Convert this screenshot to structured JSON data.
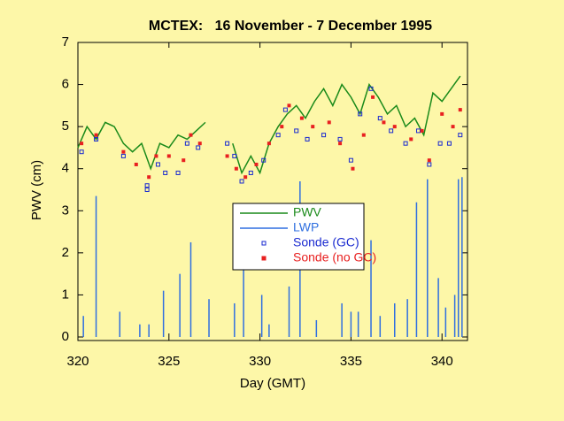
{
  "chart_data": {
    "type": "line",
    "title": "MCTEX:   16 November - 7 December 1995",
    "x_label": "Day (GMT)",
    "y_label": "PWV (cm)",
    "xlim": [
      320,
      341.4
    ],
    "ylim": [
      0,
      7
    ],
    "xticks": [
      320,
      325,
      330,
      335,
      340
    ],
    "yticks": [
      0,
      1,
      2,
      3,
      4,
      5,
      6,
      7
    ],
    "series": [
      {
        "name": "PWV",
        "color": "#1a8a1a",
        "style": "line",
        "x": [
          320,
          320.5,
          321,
          321.5,
          322,
          322.5,
          323,
          323.5,
          324,
          324.5,
          325,
          325.5,
          326,
          326.5,
          327,
          327.5,
          328,
          328.5,
          329,
          329.5,
          330,
          330.5,
          331,
          331.5,
          332,
          332.5,
          333,
          333.5,
          334,
          334.5,
          335,
          335.5,
          336,
          336.5,
          337,
          337.5,
          338,
          338.5,
          339,
          339.5,
          340,
          340.5,
          341
        ],
        "values": [
          4.5,
          5.0,
          4.7,
          5.1,
          5.0,
          4.6,
          4.4,
          4.6,
          4.0,
          4.6,
          4.5,
          4.8,
          4.7,
          4.9,
          5.1,
          null,
          null,
          4.6,
          3.9,
          4.3,
          3.9,
          4.6,
          5.0,
          5.3,
          5.5,
          5.2,
          5.6,
          5.9,
          5.5,
          6.0,
          5.7,
          5.3,
          6.0,
          5.7,
          5.3,
          5.5,
          5.0,
          5.2,
          4.8,
          5.8,
          5.6,
          5.9,
          6.2
        ]
      },
      {
        "name": "LWP",
        "color": "#2f6fe0",
        "style": "impulse",
        "x": [
          320.3,
          321,
          322.3,
          323.4,
          323.9,
          324.7,
          325.6,
          326.2,
          327.2,
          328.6,
          329.1,
          330.1,
          330.5,
          331.6,
          332.2,
          333.1,
          334.5,
          335,
          335.4,
          336.1,
          336.6,
          337.4,
          338.1,
          338.6,
          339.2,
          339.8,
          340.2,
          340.7,
          340.9,
          341.1
        ],
        "values": [
          0.5,
          3.35,
          0.6,
          0.3,
          0.3,
          1.1,
          1.5,
          2.25,
          0.9,
          0.8,
          2.7,
          1.0,
          0.3,
          1.2,
          3.7,
          0.4,
          0.8,
          0.6,
          0.6,
          2.3,
          0.5,
          0.8,
          0.9,
          3.2,
          3.75,
          1.4,
          0.7,
          1.0,
          3.75,
          3.8
        ]
      },
      {
        "name": "Sonde (GC)",
        "color": "#1a2ad0",
        "style": "open-square",
        "x": [
          320.2,
          321,
          322.5,
          323.8,
          323.8,
          324.4,
          324.8,
          325.5,
          326,
          326.6,
          328.2,
          328.6,
          329,
          329.5,
          330.2,
          331,
          331.4,
          332,
          332.6,
          333.5,
          334.4,
          335,
          335.5,
          336.1,
          336.6,
          337.2,
          338,
          338.7,
          339.3,
          339.9,
          340.4,
          341
        ],
        "values": [
          4.4,
          4.7,
          4.3,
          3.5,
          3.6,
          4.1,
          3.9,
          3.9,
          4.6,
          4.5,
          4.6,
          4.3,
          3.7,
          3.9,
          4.2,
          4.8,
          5.4,
          4.9,
          4.7,
          4.8,
          4.7,
          4.2,
          5.3,
          5.9,
          5.2,
          4.9,
          4.6,
          4.9,
          4.1,
          4.6,
          4.6,
          4.8
        ]
      },
      {
        "name": "Sonde (no GC)",
        "color": "#e82020",
        "style": "filled-square",
        "x": [
          320.2,
          321,
          322.5,
          323.2,
          323.9,
          324.3,
          325,
          325.8,
          326.2,
          326.7,
          328.2,
          328.7,
          329.2,
          329.8,
          330.5,
          331.2,
          331.6,
          332.3,
          332.9,
          333.8,
          334.4,
          335.1,
          335.7,
          336.2,
          336.8,
          337.4,
          338.3,
          338.9,
          339.3,
          340,
          340.6,
          341
        ],
        "values": [
          4.6,
          4.8,
          4.4,
          4.1,
          3.8,
          4.3,
          4.3,
          4.2,
          4.8,
          4.6,
          4.3,
          4.0,
          3.8,
          4.1,
          4.6,
          5.0,
          5.5,
          5.2,
          5.0,
          5.1,
          4.6,
          4.0,
          4.8,
          5.7,
          5.1,
          5.0,
          4.7,
          4.9,
          4.2,
          5.3,
          5.0,
          5.4
        ]
      }
    ]
  }
}
